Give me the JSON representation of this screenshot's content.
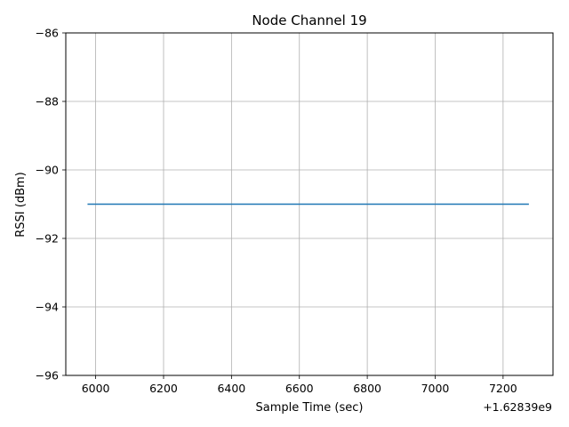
{
  "chart_data": {
    "type": "line",
    "title": "Node Channel 19",
    "xlabel": "Sample Time (sec)",
    "ylabel": "RSSI (dBm)",
    "x_offset_label": "+1.62839e9",
    "xlim": [
      5912,
      7347
    ],
    "ylim": [
      -96,
      -86
    ],
    "x_ticks": [
      6000,
      6200,
      6400,
      6600,
      6800,
      7000,
      7200
    ],
    "x_tick_labels": [
      "6000",
      "6200",
      "6400",
      "6600",
      "6800",
      "7000",
      "7200"
    ],
    "y_ticks": [
      -96,
      -94,
      -92,
      -90,
      -88,
      -86
    ],
    "y_tick_labels": [
      "−96",
      "−94",
      "−92",
      "−90",
      "−88",
      "−86"
    ],
    "grid": true,
    "series": [
      {
        "color": "#1f77b4",
        "x": [
          5976,
          7276
        ],
        "y": [
          -91,
          -91
        ]
      }
    ]
  }
}
